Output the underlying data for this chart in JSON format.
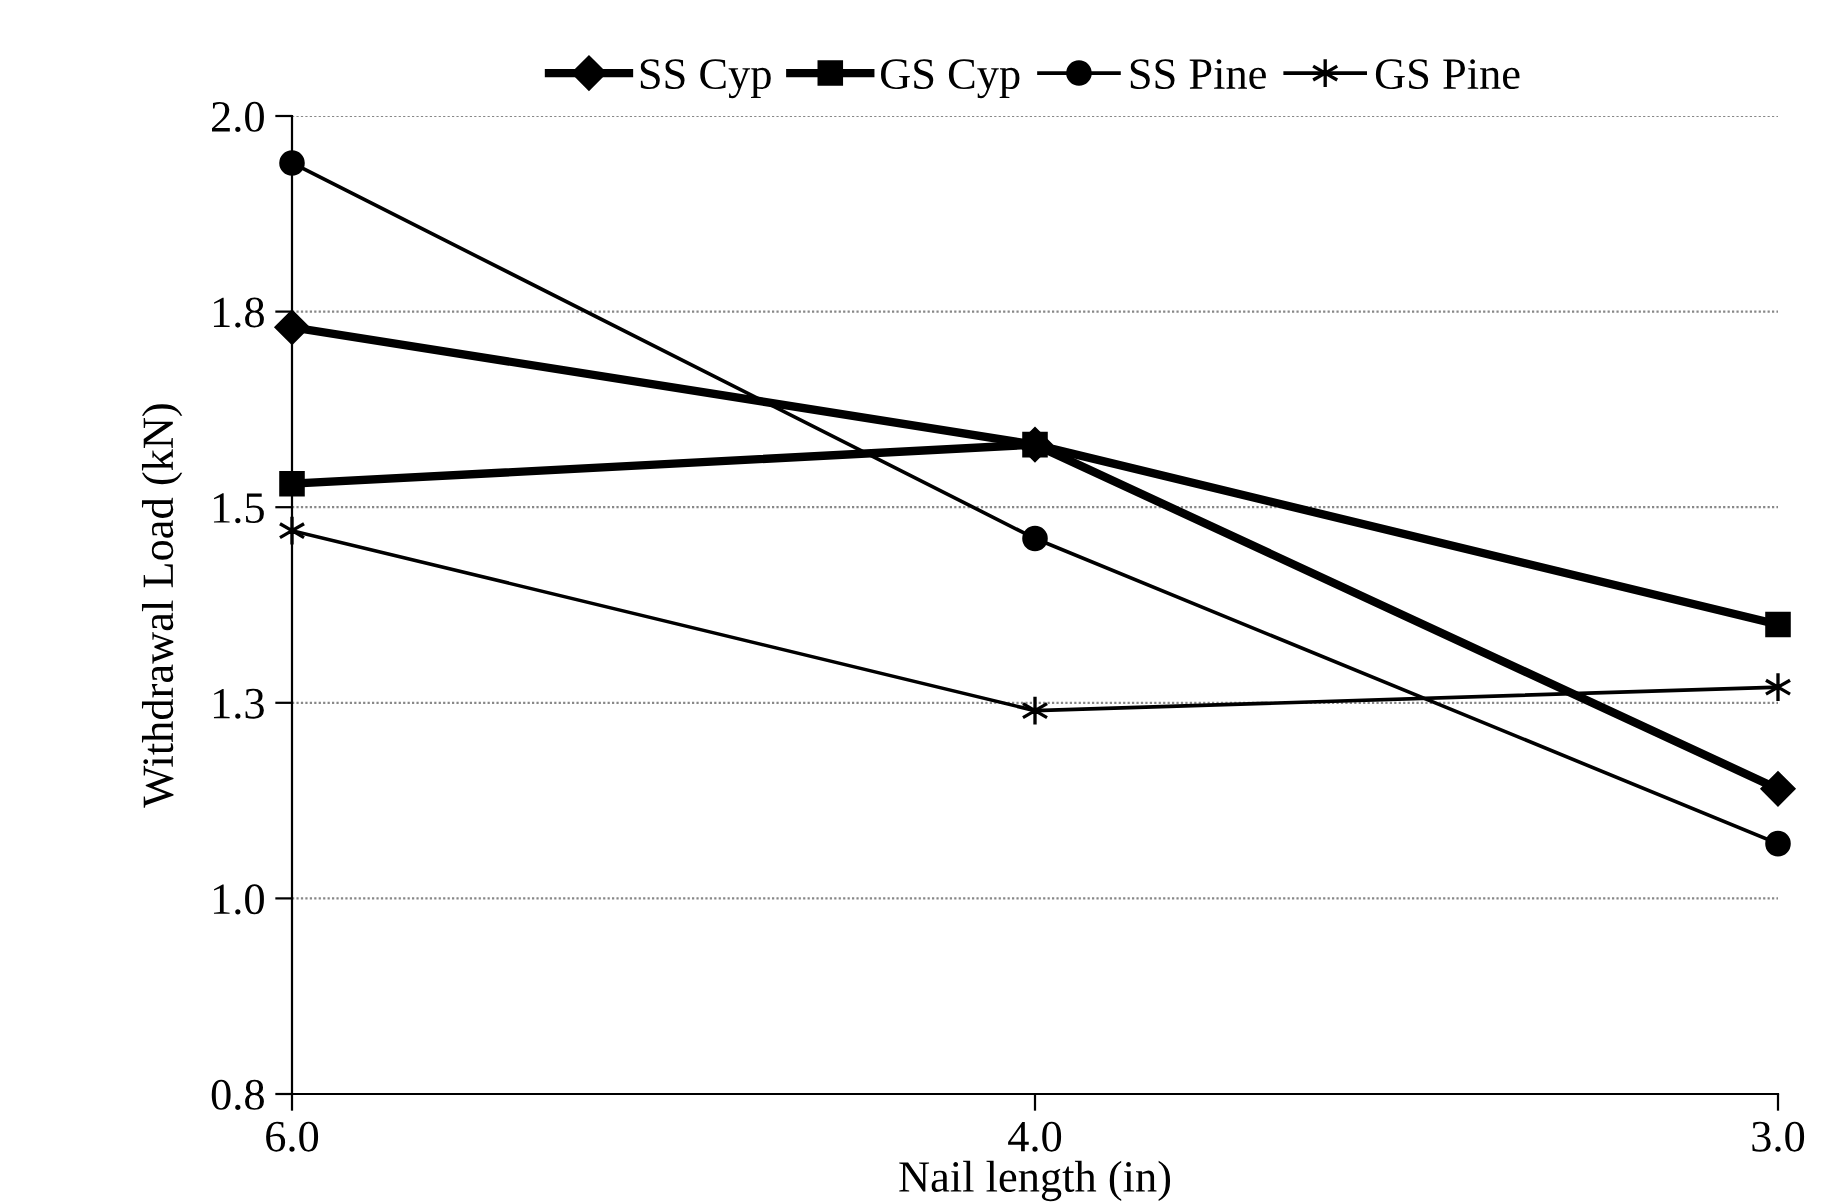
{
  "chart_data": {
    "type": "line",
    "xlabel": "Nail length (in)",
    "ylabel": "Withdrawal Load (kN)",
    "categories": [
      "6.0",
      "4.0",
      "3.0"
    ],
    "series": [
      {
        "name": "SS Cyp",
        "color": "#000000",
        "marker": "diamond",
        "values": [
          1.73,
          1.58,
          1.14
        ]
      },
      {
        "name": "GS Cyp",
        "color": "#000000",
        "marker": "square",
        "values": [
          1.53,
          1.58,
          1.35
        ]
      },
      {
        "name": "SS Pine",
        "color": "#000000",
        "marker": "circle",
        "values": [
          1.94,
          1.46,
          1.07
        ]
      },
      {
        "name": "GS Pine",
        "color": "#000000",
        "marker": "cross",
        "values": [
          1.47,
          1.24,
          1.27
        ]
      }
    ],
    "ylim": [
      0.75,
      2.0
    ],
    "yticks": [
      {
        "value": 0.75,
        "label": "0.8"
      },
      {
        "value": 1.0,
        "label": "1.0"
      },
      {
        "value": 1.25,
        "label": "1.3"
      },
      {
        "value": 1.5,
        "label": "1.5"
      },
      {
        "value": 1.75,
        "label": "1.8"
      },
      {
        "value": 2.0,
        "label": "2.0"
      }
    ],
    "grid": "y",
    "legend": "top",
    "line_style": "solid"
  }
}
